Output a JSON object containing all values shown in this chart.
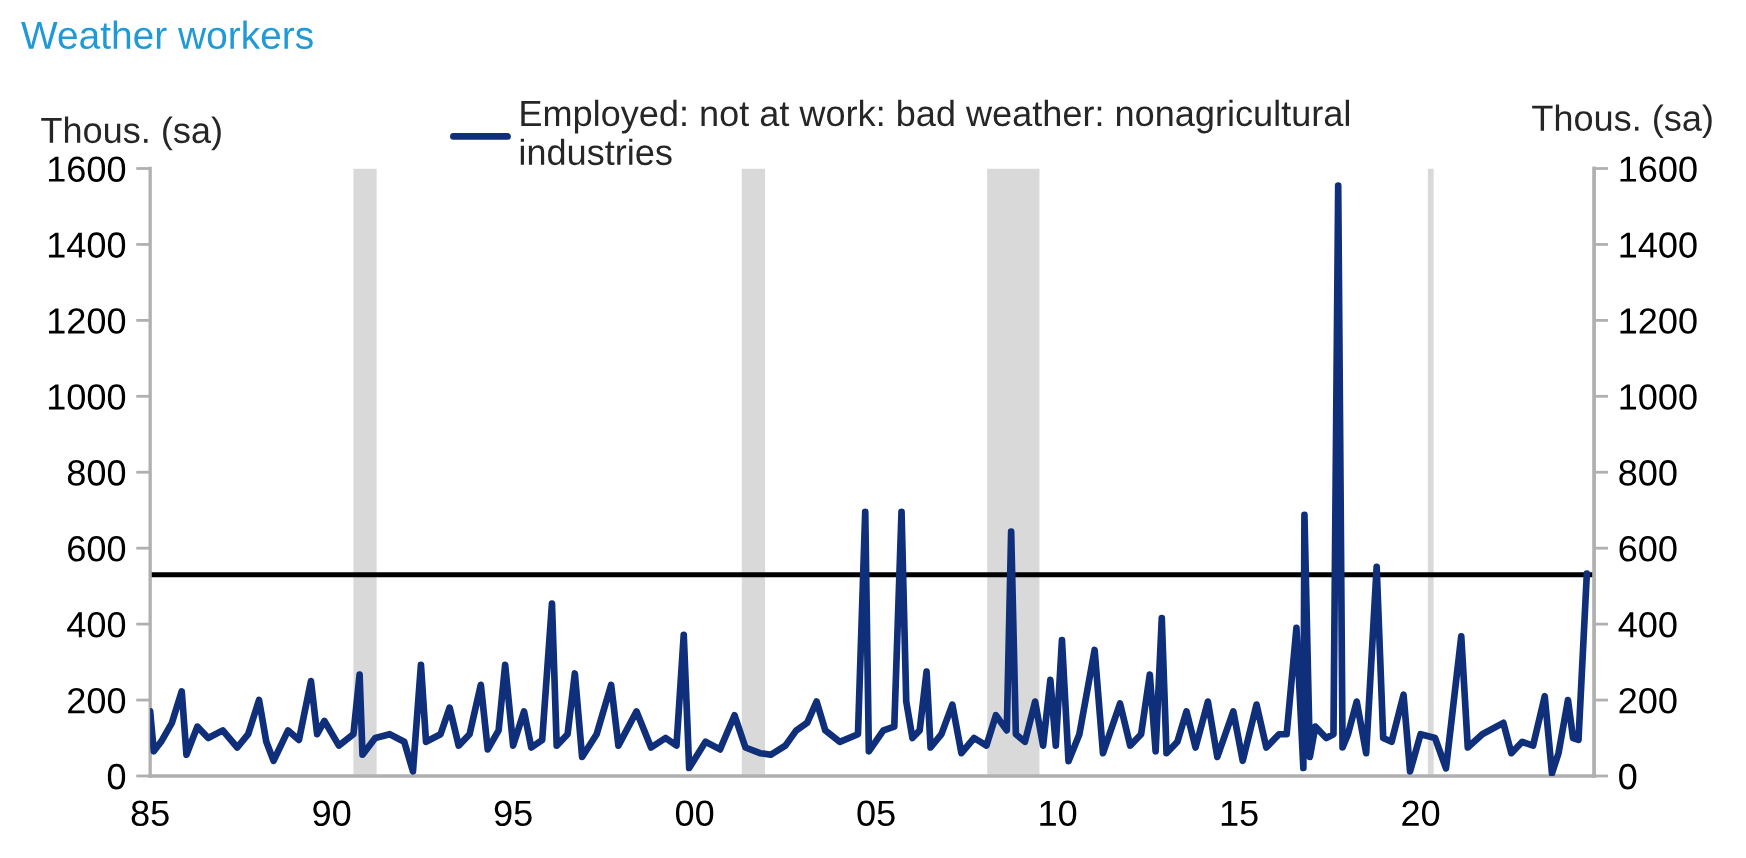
{
  "chart_data": {
    "type": "line",
    "title": "Weather workers",
    "ylabel": "Thous. (sa)",
    "y2label": "Thous. (sa)",
    "xlim": [
      1985,
      2024.78
    ],
    "xticks": [
      {
        "value": 1985,
        "label": "85"
      },
      {
        "value": 1990,
        "label": "90"
      },
      {
        "value": 1995,
        "label": "95"
      },
      {
        "value": 2000,
        "label": "00"
      },
      {
        "value": 2005,
        "label": "05"
      },
      {
        "value": 2010,
        "label": "10"
      },
      {
        "value": 2015,
        "label": "15"
      },
      {
        "value": 2020,
        "label": "20"
      }
    ],
    "ylim": [
      0,
      1600
    ],
    "yticks": [
      0,
      200,
      400,
      600,
      800,
      1000,
      1200,
      1400,
      1600
    ],
    "y2lim": [
      0,
      1600
    ],
    "y2ticks": [
      0,
      200,
      400,
      600,
      800,
      1000,
      1200,
      1400,
      1600
    ],
    "grid": false,
    "legend": "top",
    "ref_lines": [
      {
        "axis": "y",
        "value": 530,
        "color": "#000000"
      }
    ],
    "bands": [
      {
        "axis": "x",
        "from": 1990.6,
        "to": 1991.24,
        "color": "#d9d9d9"
      },
      {
        "axis": "x",
        "from": 2001.3,
        "to": 2001.94,
        "color": "#d9d9d9"
      },
      {
        "axis": "x",
        "from": 2008.06,
        "to": 2009.5,
        "color": "#d9d9d9"
      },
      {
        "axis": "x",
        "from": 2020.2,
        "to": 2020.36,
        "color": "#d9d9d9"
      }
    ],
    "series": [
      {
        "name": "Employed: not at work: bad weather: nonagricultural industries",
        "color": "#0f2f7a",
        "x": [
          1985.0,
          1985.1,
          1985.3,
          1985.6,
          1985.87,
          1986.0,
          1986.3,
          1986.6,
          1987.0,
          1987.4,
          1987.7,
          1988.0,
          1988.2,
          1988.4,
          1988.8,
          1989.1,
          1989.43,
          1989.6,
          1989.8,
          1990.2,
          1990.6,
          1990.77,
          1990.85,
          1991.2,
          1991.6,
          1992.0,
          1992.24,
          1992.46,
          1992.6,
          1993.0,
          1993.25,
          1993.5,
          1993.8,
          1994.11,
          1994.3,
          1994.6,
          1994.78,
          1995.0,
          1995.3,
          1995.5,
          1995.8,
          1996.07,
          1996.2,
          1996.5,
          1996.7,
          1996.9,
          1997.3,
          1997.7,
          1997.9,
          1998.4,
          1998.8,
          1999.2,
          1999.5,
          1999.7,
          1999.85,
          2000.3,
          2000.7,
          2001.1,
          2001.4,
          2001.8,
          2002.1,
          2002.5,
          2002.8,
          2003.1,
          2003.36,
          2003.6,
          2004.0,
          2004.5,
          2004.7,
          2004.8,
          2005.2,
          2005.5,
          2005.7,
          2005.83,
          2006.0,
          2006.2,
          2006.39,
          2006.5,
          2006.8,
          2007.1,
          2007.35,
          2007.7,
          2008.04,
          2008.3,
          2008.6,
          2008.72,
          2008.85,
          2009.1,
          2009.38,
          2009.6,
          2009.8,
          2009.95,
          2010.12,
          2010.3,
          2010.6,
          2011.02,
          2011.25,
          2011.72,
          2012.0,
          2012.3,
          2012.54,
          2012.7,
          2012.87,
          2013.0,
          2013.3,
          2013.55,
          2013.8,
          2014.14,
          2014.4,
          2014.84,
          2015.1,
          2015.48,
          2015.75,
          2016.1,
          2016.31,
          2016.58,
          2016.77,
          2016.8,
          2016.95,
          2017.1,
          2017.4,
          2017.6,
          2017.73,
          2017.85,
          2018.0,
          2018.24,
          2018.5,
          2018.79,
          2018.97,
          2019.2,
          2019.53,
          2019.71,
          2020.0,
          2020.4,
          2020.7,
          2021.12,
          2021.3,
          2021.7,
          2022.28,
          2022.5,
          2022.8,
          2023.1,
          2023.42,
          2023.62,
          2023.8,
          2024.06,
          2024.2,
          2024.35,
          2024.58
        ],
        "values": [
          170,
          65,
          90,
          140,
          223,
          56,
          130,
          100,
          120,
          75,
          110,
          200,
          90,
          40,
          120,
          95,
          250,
          110,
          145,
          80,
          110,
          267,
          56,
          100,
          110,
          90,
          12,
          293,
          90,
          110,
          180,
          80,
          110,
          240,
          70,
          120,
          293,
          80,
          170,
          75,
          95,
          454,
          80,
          110,
          270,
          50,
          110,
          240,
          80,
          170,
          75,
          100,
          80,
          372,
          21,
          90,
          70,
          160,
          75,
          60,
          56,
          80,
          120,
          140,
          196,
          120,
          90,
          110,
          696,
          65,
          120,
          130,
          696,
          196,
          100,
          120,
          275,
          75,
          110,
          188,
          60,
          100,
          80,
          160,
          120,
          644,
          110,
          90,
          196,
          80,
          253,
          80,
          358,
          39,
          110,
          332,
          60,
          191,
          80,
          110,
          267,
          65,
          416,
          60,
          90,
          170,
          75,
          196,
          50,
          170,
          40,
          188,
          75,
          110,
          110,
          390,
          21,
          688,
          50,
          130,
          100,
          110,
          1555,
          75,
          110,
          196,
          60,
          551,
          100,
          90,
          214,
          12,
          110,
          100,
          20,
          368,
          75,
          110,
          140,
          60,
          90,
          80,
          210,
          7,
          60,
          200,
          100,
          95,
          533
        ]
      }
    ]
  }
}
